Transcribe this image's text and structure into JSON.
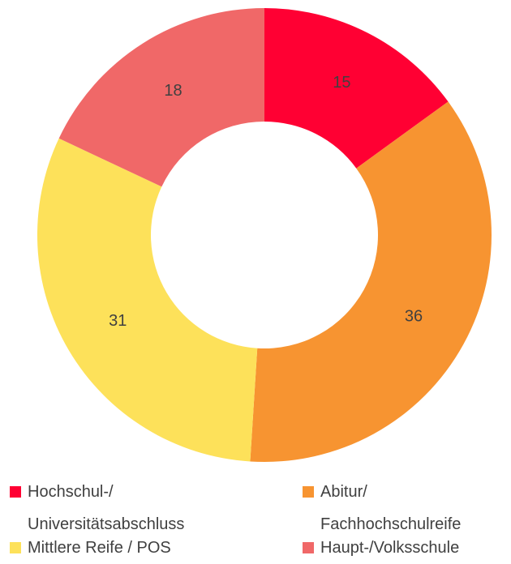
{
  "chart_data": {
    "type": "donut",
    "categories": [
      "Hochschul-/ Universitätsabschluss",
      "Abitur/ Fachhochschulreife",
      "Mittlere Reife / POS",
      "Haupt-/Volksschule"
    ],
    "values": [
      15,
      36,
      31,
      18
    ],
    "colors": [
      "#ff0033",
      "#f79431",
      "#fde15a",
      "#f06868"
    ],
    "legend": "bottom"
  }
}
